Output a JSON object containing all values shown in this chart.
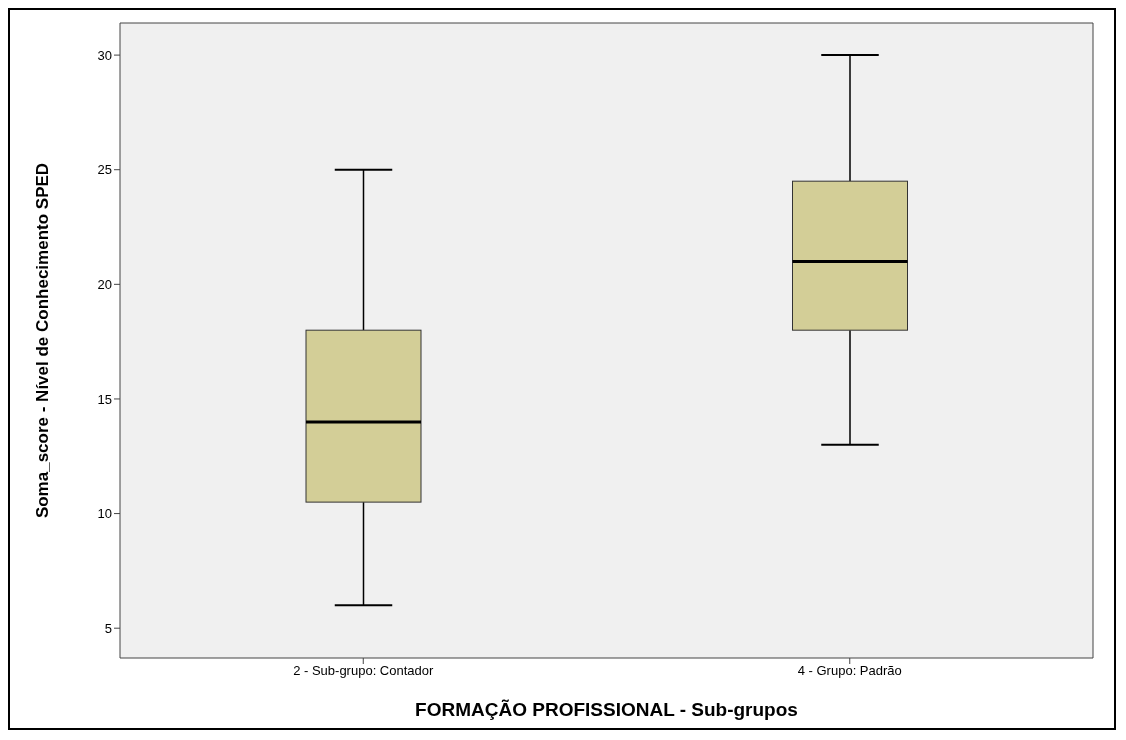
{
  "chart_data": {
    "type": "box",
    "xlabel": "FORMAÇÃO PROFISSIONAL - Sub-grupos",
    "ylabel": "Soma_score - Nível de Conhecimento SPED",
    "categories": [
      "2 - Sub-grupo: Contador",
      "4 - Grupo: Padrão"
    ],
    "color": "#d3ce97",
    "boxes": [
      {
        "low": 6,
        "q1": 10.5,
        "median": 14,
        "q3": 18,
        "high": 25
      },
      {
        "low": 13,
        "q1": 18,
        "median": 21,
        "q3": 24.5,
        "high": 30
      }
    ],
    "ylim": [
      3.7,
      31.4
    ],
    "yticks": [
      5,
      10,
      15,
      20,
      25,
      30
    ],
    "grid": false,
    "legend": false
  }
}
